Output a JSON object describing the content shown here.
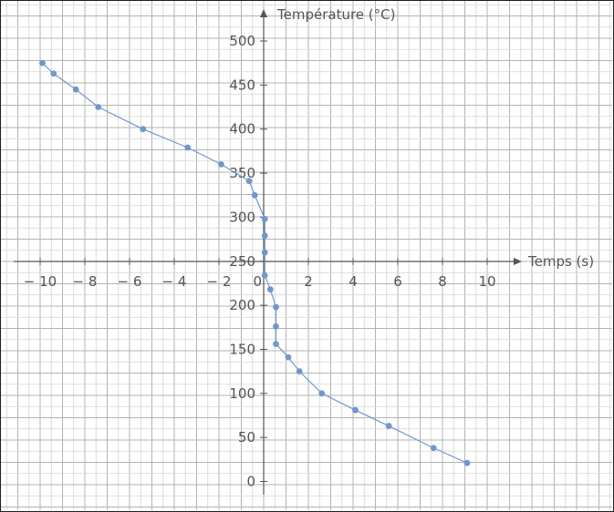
{
  "chart_data": {
    "type": "line",
    "title": "",
    "xlabel": "Temps (s)",
    "ylabel": "Température (°C)",
    "colors": {
      "series": "#7098cc",
      "axis": "#555555",
      "grid_minor": "#d4d4d4",
      "grid_major": "#b3b3b3"
    },
    "x_axis": {
      "range": [
        -11.8,
        15.2
      ],
      "ticks": [
        -10,
        -8,
        -6,
        -4,
        -2,
        0,
        2,
        4,
        6,
        8,
        10
      ],
      "tick_labels": [
        "− 10",
        "− 8",
        "− 6",
        "− 4",
        "− 2",
        "0",
        "2",
        "4",
        "6",
        "8",
        "10"
      ]
    },
    "y_axis_upper": {
      "ticks": [
        250,
        300,
        350,
        400,
        450,
        500
      ],
      "tick_labels": [
        "250",
        "300",
        "350",
        "400",
        "450",
        "500"
      ]
    },
    "y_axis_lower": {
      "ticks": [
        0,
        50,
        100,
        150,
        200
      ],
      "tick_labels": [
        "0",
        "50",
        "100",
        "150",
        "200"
      ]
    },
    "grid": true,
    "series": [
      {
        "name": "",
        "points": [
          {
            "x": -9.9,
            "t": 475
          },
          {
            "x": -9.4,
            "t": 463
          },
          {
            "x": -8.4,
            "t": 445
          },
          {
            "x": -7.4,
            "t": 425
          },
          {
            "x": -5.4,
            "t": 400
          },
          {
            "x": -3.4,
            "t": 379
          },
          {
            "x": -1.9,
            "t": 360
          },
          {
            "x": -0.65,
            "t": 341
          },
          {
            "x": -0.4,
            "t": 325
          },
          {
            "x": 0.05,
            "t": 298
          },
          {
            "x": 0.05,
            "t": 279
          },
          {
            "x": 0.05,
            "t": 260
          },
          {
            "x": 0.05,
            "t": 234
          },
          {
            "x": 0.3,
            "t": 218
          },
          {
            "x": 0.55,
            "t": 198
          },
          {
            "x": 0.55,
            "t": 176
          },
          {
            "x": 0.55,
            "t": 156
          },
          {
            "x": 1.1,
            "t": 141
          },
          {
            "x": 1.6,
            "t": 125
          },
          {
            "x": 2.6,
            "t": 100
          },
          {
            "x": 4.1,
            "t": 81
          },
          {
            "x": 5.6,
            "t": 63
          },
          {
            "x": 7.6,
            "t": 38
          },
          {
            "x": 9.1,
            "t": 21
          }
        ]
      }
    ]
  }
}
